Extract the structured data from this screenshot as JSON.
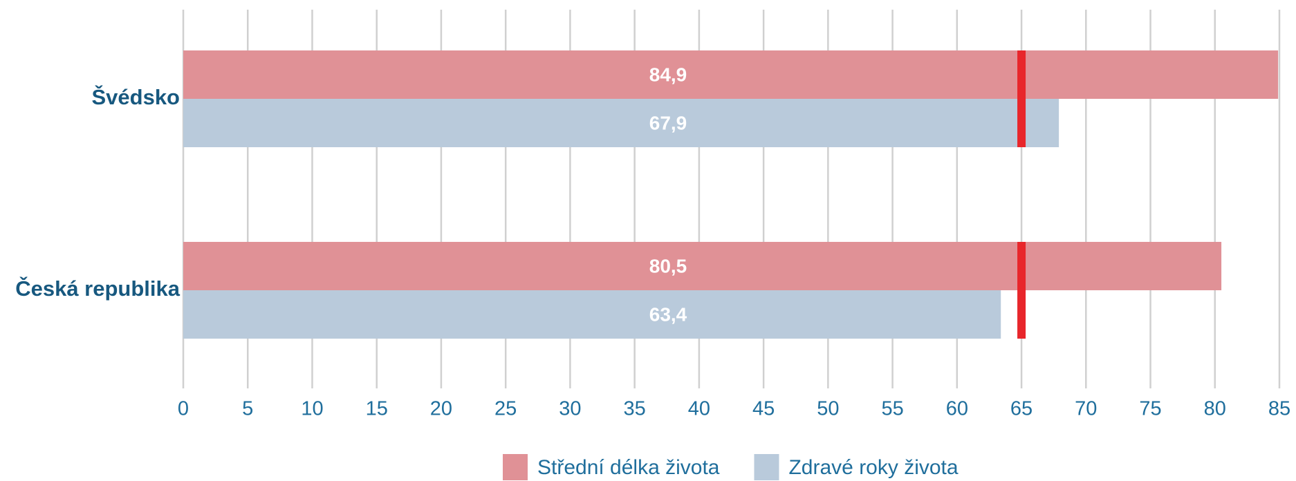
{
  "chart_data": {
    "type": "hbar",
    "categories": [
      "Švédsko",
      "Česká republika"
    ],
    "series": [
      {
        "name": "Střední délka života",
        "color": "#e09196",
        "values": [
          84.9,
          80.5
        ],
        "value_labels": [
          "84,9",
          "80,5"
        ]
      },
      {
        "name": "Zdravé roky života",
        "color": "#b9cadb",
        "values": [
          67.9,
          63.4
        ],
        "value_labels": [
          "67,9",
          "63,4"
        ]
      }
    ],
    "xlim": [
      0,
      85
    ],
    "xticks": [
      0,
      5,
      10,
      15,
      20,
      25,
      30,
      35,
      40,
      45,
      50,
      55,
      60,
      65,
      70,
      75,
      80,
      85
    ],
    "grid": true,
    "marker": 65,
    "marker_color": "#e8262b",
    "legend": "bottom"
  }
}
